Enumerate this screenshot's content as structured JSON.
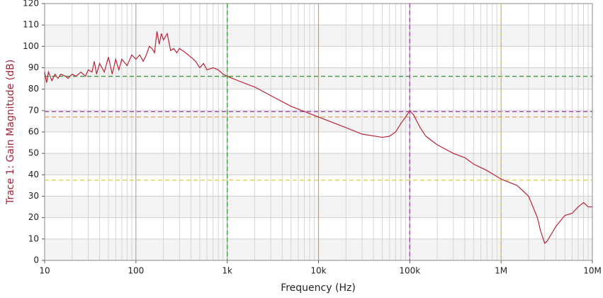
{
  "chart_data": {
    "type": "line",
    "x_label": "Frequency (Hz)",
    "y_label": "Trace 1: Gain Magnitude (dB)",
    "log_x": true,
    "grid": true,
    "xlim": [
      10,
      10000000
    ],
    "ylim": [
      0,
      120
    ],
    "xticks": [
      10,
      100,
      {
        "value": 1000,
        "label": "1k"
      },
      {
        "value": 10000,
        "label": "10k"
      },
      {
        "value": 100000,
        "label": "100k"
      },
      {
        "value": 1000000,
        "label": "1M"
      },
      {
        "value": 10000000,
        "label": "10M"
      }
    ],
    "yticks": [
      0,
      10,
      20,
      30,
      40,
      50,
      60,
      70,
      80,
      90,
      100,
      110,
      120
    ],
    "series": [
      {
        "name": "Trace 1",
        "color": "#b5263a",
        "x": [
          10,
          10.5,
          11,
          12,
          13,
          14,
          15,
          17,
          18,
          20,
          22,
          25,
          28,
          30,
          33,
          35,
          37,
          40,
          45,
          50,
          55,
          60,
          65,
          70,
          80,
          90,
          100,
          110,
          120,
          130,
          140,
          150,
          160,
          170,
          180,
          190,
          200,
          220,
          240,
          260,
          280,
          300,
          350,
          400,
          450,
          500,
          550,
          600,
          700,
          800,
          900,
          1000,
          1500,
          2000,
          3000,
          5000,
          10000,
          20000,
          30000,
          50000,
          60000,
          70000,
          80000,
          90000,
          100000,
          110000,
          130000,
          150000,
          200000,
          300000,
          400000,
          500000,
          700000,
          1000000,
          1500000,
          2000000,
          2500000,
          2700000,
          3000000,
          3200000,
          4000000,
          5000000,
          6000000,
          7000000,
          8000000,
          9000000,
          10000000
        ],
        "values": [
          88,
          83,
          88,
          84,
          87,
          85,
          87,
          86,
          85,
          87,
          86,
          88,
          86,
          89,
          88,
          93,
          87,
          92,
          88,
          95,
          87,
          94,
          89,
          94,
          91,
          96,
          94,
          96,
          93,
          96,
          100,
          99,
          97,
          107,
          101,
          106,
          103,
          106,
          98,
          99,
          97,
          99,
          97,
          95,
          93,
          90,
          92,
          89,
          90,
          89,
          87,
          86,
          83,
          81,
          77,
          72,
          67,
          62,
          59,
          57.5,
          58,
          60,
          64,
          67,
          70,
          68,
          62,
          58,
          54,
          50,
          48,
          45,
          42,
          38,
          35,
          30,
          20,
          14,
          8,
          9,
          16,
          21,
          22,
          25,
          27,
          25,
          25
        ]
      }
    ],
    "markers": [
      {
        "x": 1000,
        "y": 86,
        "color": "#3a9a3a"
      },
      {
        "x": 10000,
        "y": 67,
        "color": "#e0a060"
      },
      {
        "x": 100000,
        "y": 69.5,
        "color": "#9b3fa8"
      },
      {
        "x": 1000000,
        "y": 37.5,
        "color": "#e0c840"
      }
    ]
  }
}
